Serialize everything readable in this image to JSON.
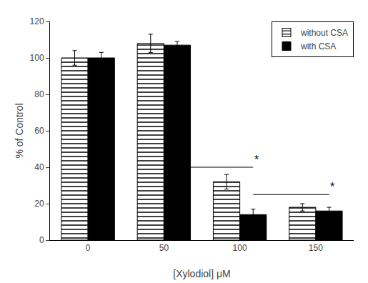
{
  "chart_data": {
    "type": "bar",
    "categories": [
      "0",
      "50",
      "100",
      "150"
    ],
    "series": [
      {
        "name": "without CSA",
        "color": "white",
        "values": [
          100,
          108,
          32,
          18
        ],
        "errors": [
          4,
          5,
          4,
          2
        ]
      },
      {
        "name": "with CSA",
        "color": "black",
        "values": [
          100,
          107,
          14,
          16
        ],
        "errors": [
          3,
          2,
          3,
          2
        ]
      }
    ],
    "ylabel": "% of Control",
    "xlabel": "[Xylodiol] μM",
    "ylim": [
      0,
      120
    ],
    "yticks": [
      0,
      20,
      40,
      60,
      80,
      100,
      120
    ],
    "annotations": [
      {
        "text": "*",
        "span": [
          "50",
          "100"
        ],
        "y": 40
      },
      {
        "text": "*",
        "span": [
          "100",
          "150"
        ],
        "y": 25
      }
    ],
    "grid": false,
    "legend": "upper right"
  }
}
